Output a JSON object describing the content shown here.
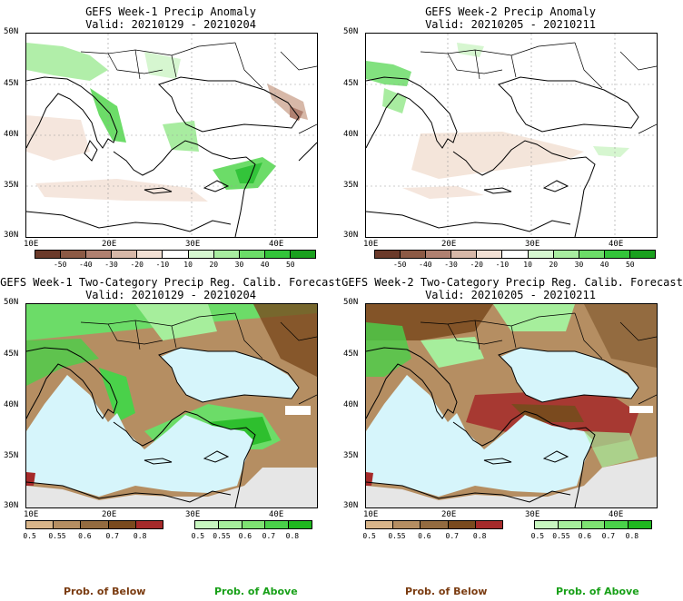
{
  "panels": {
    "p1": {
      "title": "GEFS Week-1 Precip Anomaly",
      "valid": "Valid: 20210129 - 20210204"
    },
    "p2": {
      "title": "GEFS Week-2 Precip Anomaly",
      "valid": "Valid: 20210205 - 20210211"
    },
    "p3": {
      "title": "GEFS Week-1 Two-Category Precip Reg. Calib. Forecast",
      "valid": "Valid: 20210129 - 20210204"
    },
    "p4": {
      "title": "GEFS Week-2 Two-Category Precip Reg. Calib. Forecast",
      "valid": "Valid: 20210205 - 20210211"
    }
  },
  "axes": {
    "lat": [
      "50N",
      "45N",
      "40N",
      "35N",
      "30N"
    ],
    "lon": [
      "10E",
      "20E",
      "30E",
      "40E"
    ]
  },
  "anomaly_scale": {
    "labels": [
      "-50",
      "-40",
      "-30",
      "-20",
      "-10",
      "10",
      "20",
      "30",
      "40",
      "50"
    ],
    "colors": [
      "#6b3a2a",
      "#8c5a45",
      "#b08070",
      "#d7b8a8",
      "#f2e0d4",
      "#ffffff",
      "#d6f6d0",
      "#a8eca0",
      "#6cdc68",
      "#33c43a",
      "#1aa01e"
    ]
  },
  "prob_scale": {
    "below": {
      "labels": [
        "0.5",
        "0.55",
        "0.6",
        "0.7",
        "0.8"
      ],
      "colors": [
        "#d8b58a",
        "#b58e62",
        "#936b40",
        "#7a4a1e",
        "#a52a2a"
      ]
    },
    "above": {
      "labels": [
        "0.5",
        "0.55",
        "0.6",
        "0.7",
        "0.8"
      ],
      "colors": [
        "#c8f7c0",
        "#a6ee9c",
        "#7ee272",
        "#4ad14a",
        "#1fb81f"
      ]
    }
  },
  "legend": {
    "below_left": "Prob. of Below",
    "above_left": "Prob. of Above",
    "below_right": "Prob. of Below",
    "above_right": "Prob. of Above"
  },
  "colors": {
    "sea": "#d6f5fb",
    "land_nodata": "#e6e6e6",
    "border": "#000000",
    "below_text": "#7a3b10",
    "above_text": "#18a018"
  }
}
